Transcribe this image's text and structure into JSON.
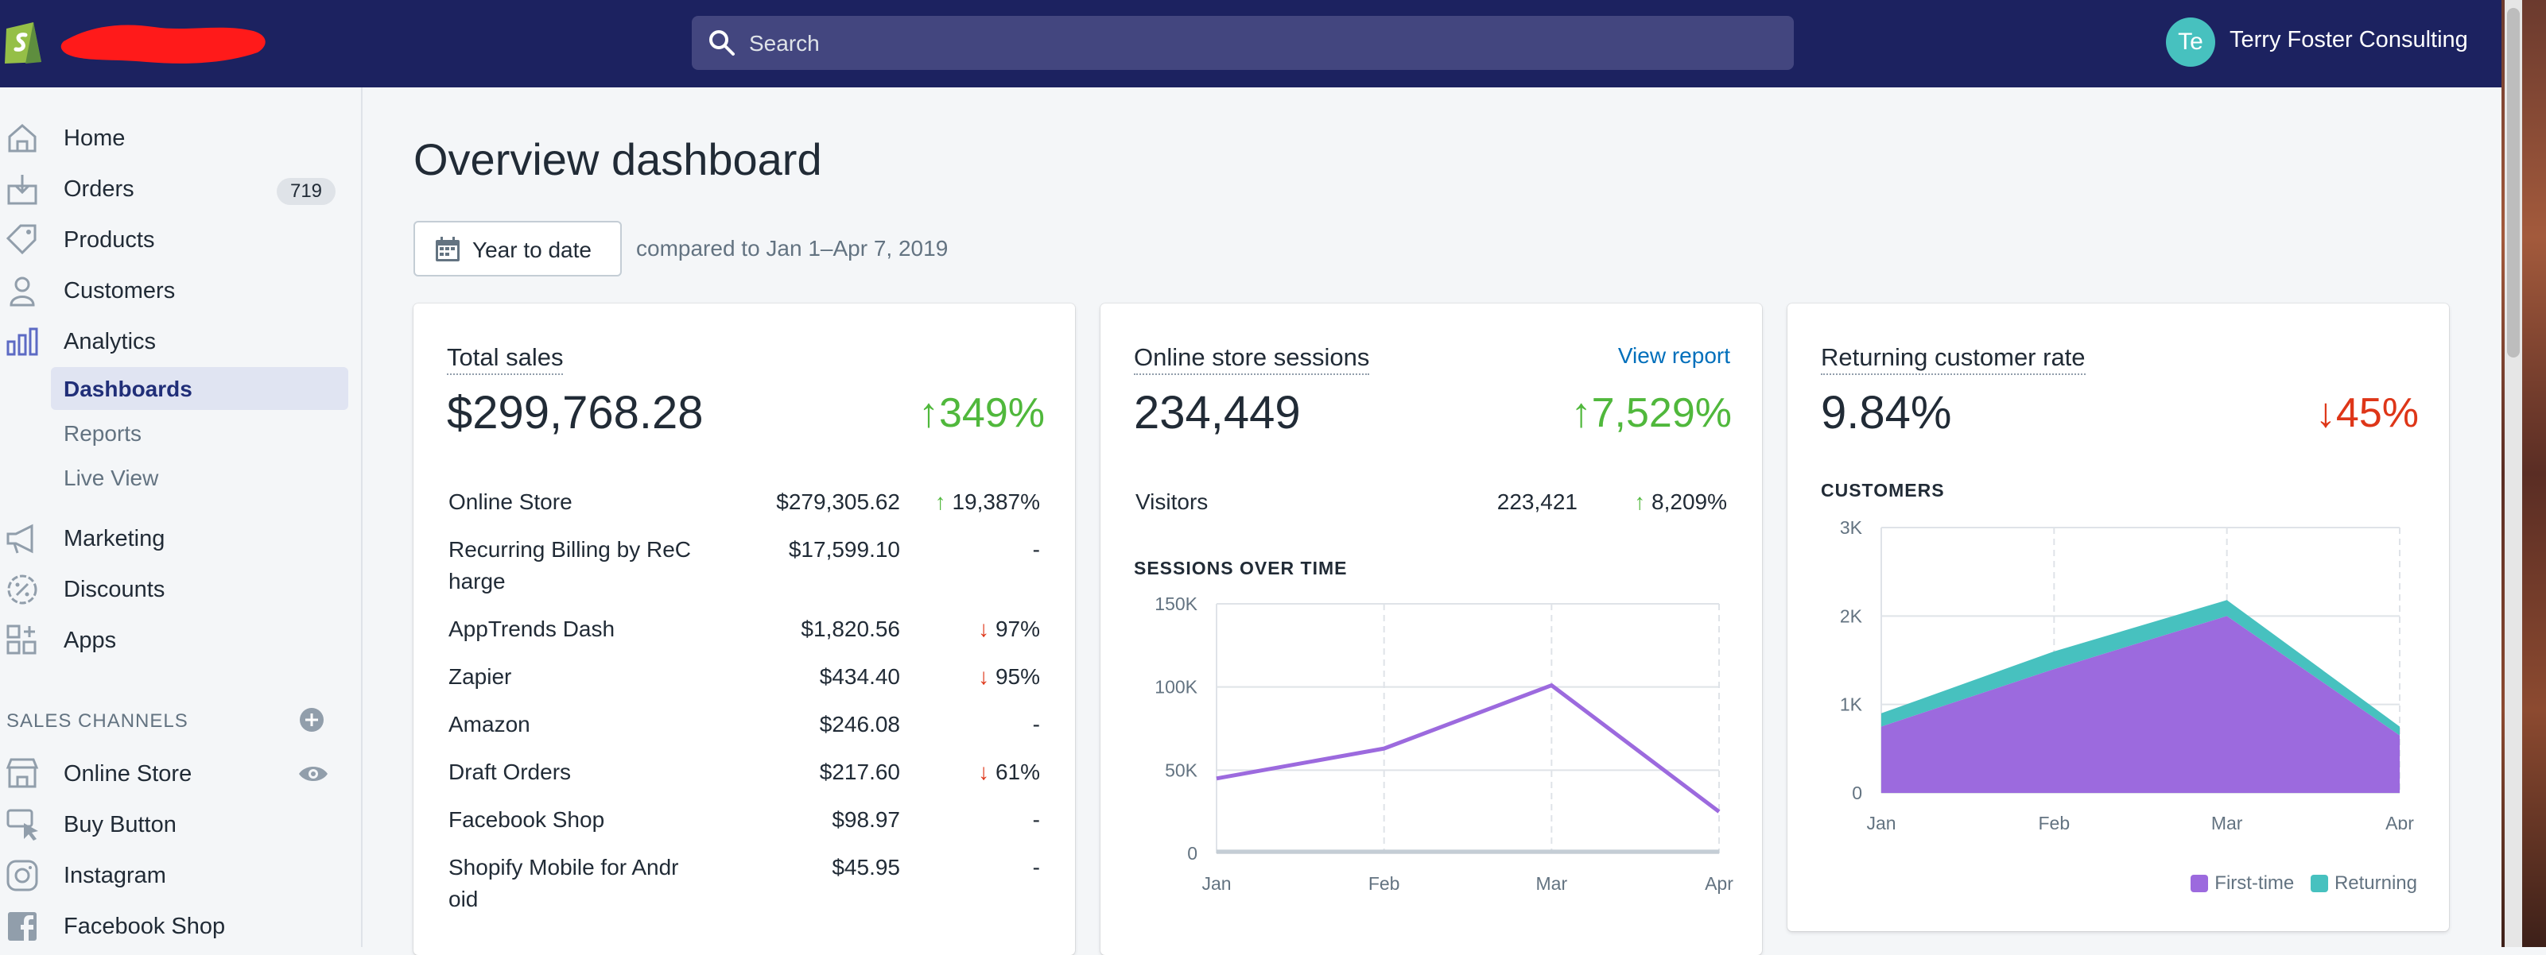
{
  "topbar": {
    "search_placeholder": "Search",
    "avatar_initials": "Te",
    "user_name": "Terry Foster Consulting",
    "colors": {
      "bar": "#1c2260",
      "avatar": "#47c1bf"
    }
  },
  "sidebar": {
    "items": [
      {
        "label": "Home",
        "icon": "home-icon"
      },
      {
        "label": "Orders",
        "icon": "orders-icon",
        "badge": "719"
      },
      {
        "label": "Products",
        "icon": "tag-icon"
      },
      {
        "label": "Customers",
        "icon": "person-icon"
      },
      {
        "label": "Analytics",
        "icon": "bar-chart-icon"
      }
    ],
    "analytics_sub": [
      {
        "label": "Dashboards",
        "active": true
      },
      {
        "label": "Reports"
      },
      {
        "label": "Live View"
      }
    ],
    "items2": [
      {
        "label": "Marketing",
        "icon": "megaphone-icon"
      },
      {
        "label": "Discounts",
        "icon": "discount-icon"
      },
      {
        "label": "Apps",
        "icon": "apps-icon"
      }
    ],
    "sales_channels_title": "SALES CHANNELS",
    "channels": [
      {
        "label": "Online Store",
        "icon": "store-icon"
      },
      {
        "label": "Buy Button",
        "icon": "buy-button-icon"
      },
      {
        "label": "Instagram",
        "icon": "instagram-icon"
      },
      {
        "label": "Facebook Shop",
        "icon": "facebook-icon"
      }
    ]
  },
  "page": {
    "title": "Overview dashboard",
    "date_range": "Year to date",
    "compare_text": "compared to Jan 1–Apr 7, 2019"
  },
  "cards": {
    "sales": {
      "title": "Total sales",
      "value": "$299,768.28",
      "delta": "349%",
      "rows": [
        {
          "name": "Online Store",
          "value": "$279,305.62",
          "pct": "19,387%",
          "dir": "up"
        },
        {
          "name": "Recurring Billing by ReC harge",
          "value": "$17,599.10",
          "pct": "-",
          "dir": "none"
        },
        {
          "name": "AppTrends Dash",
          "value": "$1,820.56",
          "pct": "97%",
          "dir": "down"
        },
        {
          "name": "Zapier",
          "value": "$434.40",
          "pct": "95%",
          "dir": "down"
        },
        {
          "name": "Amazon",
          "value": "$246.08",
          "pct": "-",
          "dir": "none"
        },
        {
          "name": "Draft Orders",
          "value": "$217.60",
          "pct": "61%",
          "dir": "down"
        },
        {
          "name": "Facebook Shop",
          "value": "$98.97",
          "pct": "-",
          "dir": "none"
        },
        {
          "name": "Shopify Mobile for Andr oid",
          "value": "$45.95",
          "pct": "-",
          "dir": "none"
        }
      ]
    },
    "sessions": {
      "title": "Online store sessions",
      "view_report": "View report",
      "value": "234,449",
      "delta": "7,529%",
      "visitors_label": "Visitors",
      "visitors_value": "223,421",
      "visitors_pct": "8,209%",
      "chart_title": "SESSIONS OVER TIME"
    },
    "returning": {
      "title": "Returning customer rate",
      "value": "9.84%",
      "delta": "45%",
      "chart_title": "CUSTOMERS"
    }
  },
  "chart_data": [
    {
      "type": "line",
      "title": "SESSIONS OVER TIME",
      "categories": [
        "Jan",
        "Feb",
        "Mar",
        "Apr"
      ],
      "yticks": [
        "0",
        "50K",
        "100K",
        "150K"
      ],
      "ylim": [
        0,
        150000
      ],
      "series": [
        {
          "color": "#9c6ade",
          "values": [
            45000,
            63000,
            101000,
            25000
          ]
        },
        {
          "color": "#c4cdd5",
          "values": [
            1000,
            1000,
            1000,
            1000
          ]
        }
      ],
      "grid": true
    },
    {
      "type": "area",
      "title": "CUSTOMERS",
      "categories": [
        "Jan",
        "Feb",
        "Mar",
        "Apr"
      ],
      "yticks": [
        "0",
        "1K",
        "2K",
        "3K"
      ],
      "ylim": [
        0,
        3000
      ],
      "series": [
        {
          "name": "First-time",
          "color": "#9c6ade",
          "values": [
            750,
            1400,
            2000,
            650
          ]
        },
        {
          "name": "Returning",
          "color": "#47c1bf",
          "values": [
            150,
            200,
            180,
            100
          ]
        }
      ],
      "legend": "bottom-right",
      "grid": true
    }
  ]
}
